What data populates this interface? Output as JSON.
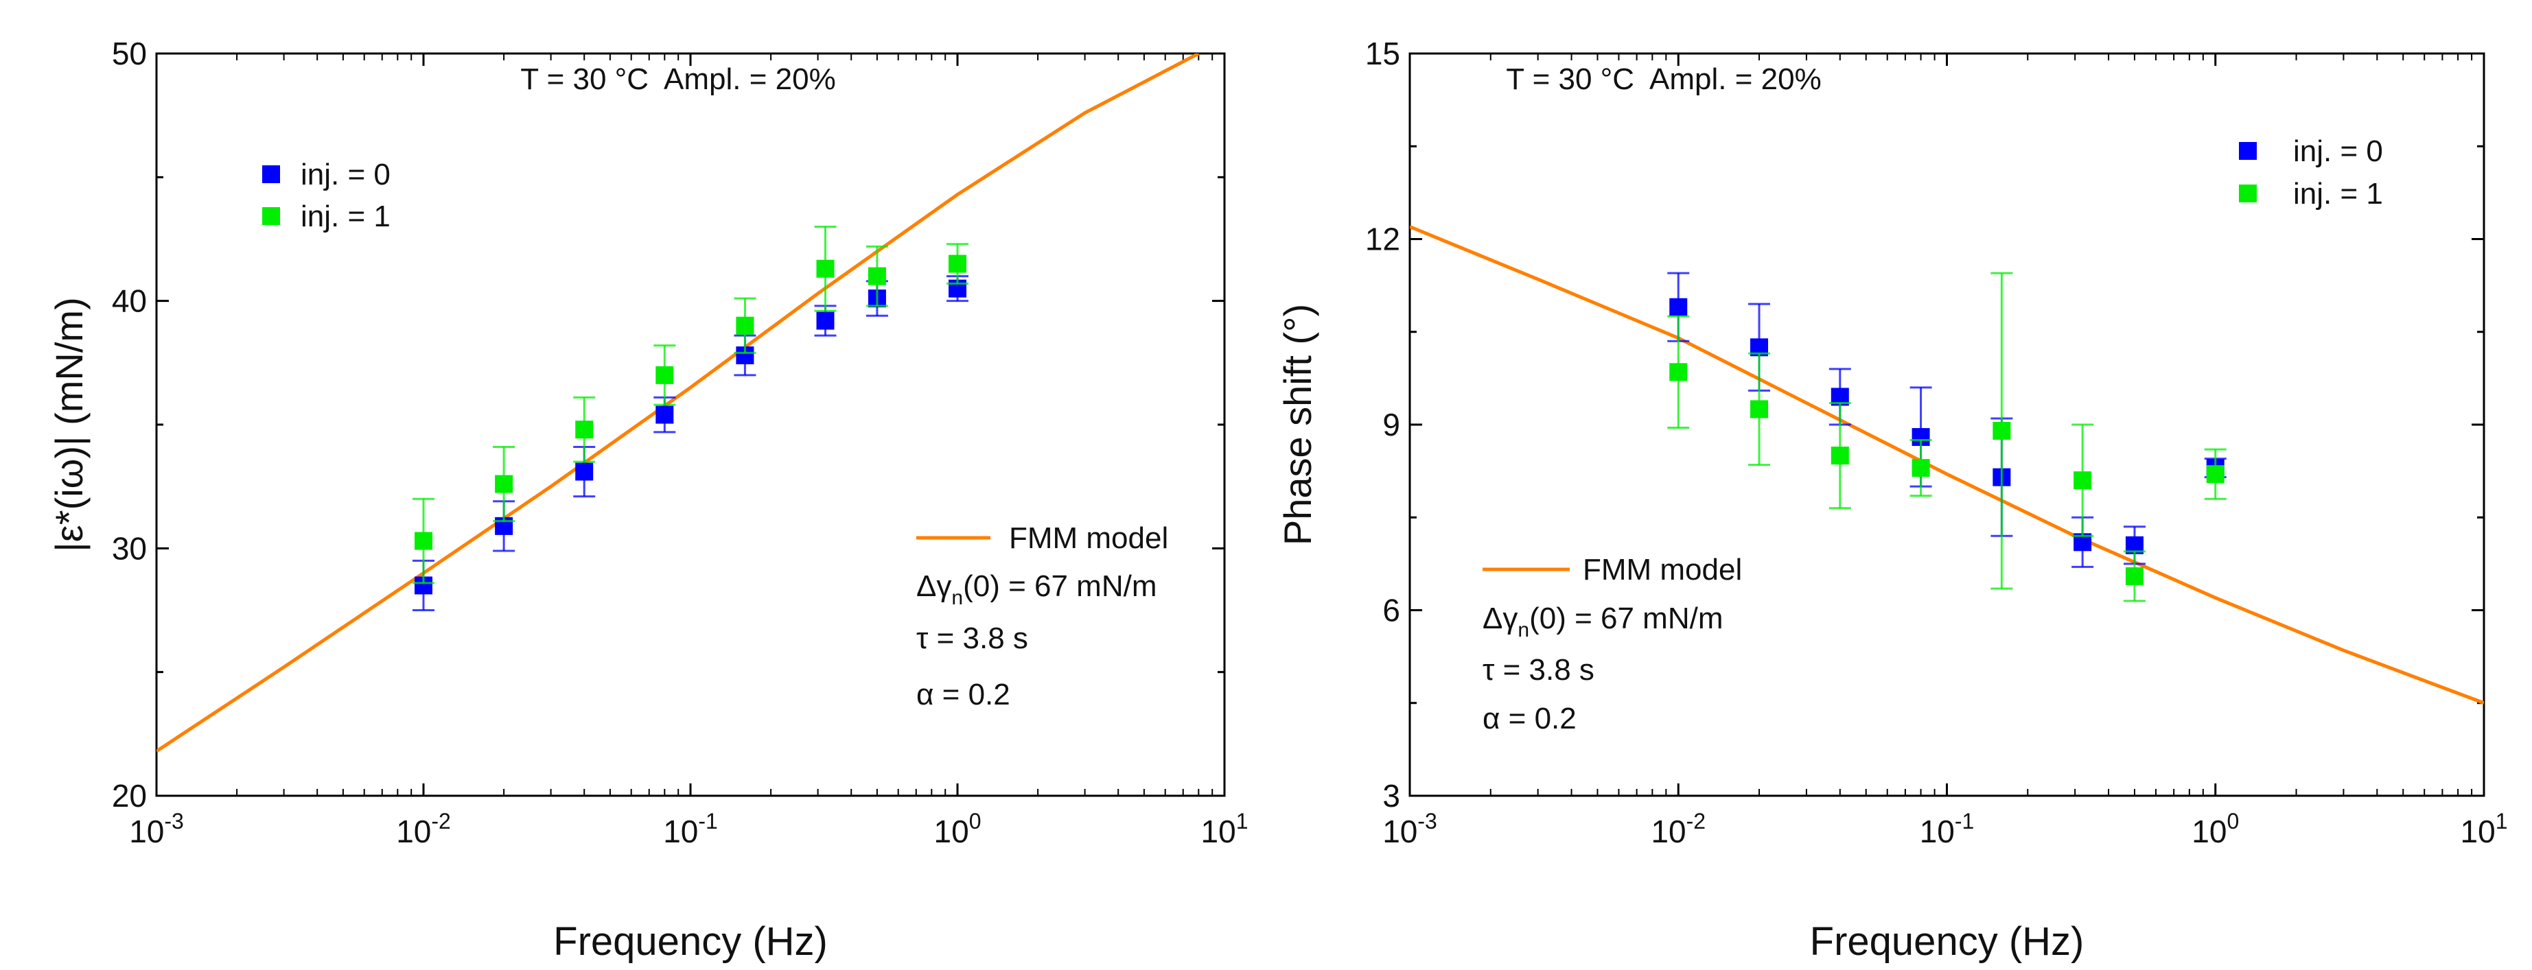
{
  "chart_data": [
    {
      "type": "scatter",
      "title": "T = 30 °C  Ampl. = 20%",
      "title_parts": {
        "prefix": "T = 30 ",
        "degree": "o",
        "suffix": "C  Ampl. = 20%"
      },
      "xlabel": "Frequency (Hz)",
      "ylabel": "|ε*(iω)| (mN/m)",
      "xscale": "log",
      "xlim": [
        0.001,
        10
      ],
      "ylim": [
        20,
        50
      ],
      "yticks": [
        20,
        30,
        40,
        50
      ],
      "xticks": [
        {
          "base": "10",
          "exp": "-3"
        },
        {
          "base": "10",
          "exp": "-2"
        },
        {
          "base": "10",
          "exp": "-1"
        },
        {
          "base": "10",
          "exp": "0"
        },
        {
          "base": "10",
          "exp": "1"
        }
      ],
      "legend_placement": "top-left",
      "series": [
        {
          "name": "inj. = 0",
          "color": "#0000ff",
          "x": [
            0.01,
            0.02,
            0.04,
            0.08,
            0.16,
            0.32,
            0.5,
            1
          ],
          "y": [
            28.5,
            30.9,
            33.1,
            35.4,
            37.8,
            39.2,
            40.1,
            40.5
          ],
          "err": [
            1.0,
            1.0,
            1.0,
            0.7,
            0.8,
            0.6,
            0.7,
            0.5
          ]
        },
        {
          "name": "inj. = 1",
          "color": "#00ee00",
          "x": [
            0.01,
            0.02,
            0.04,
            0.08,
            0.16,
            0.32,
            0.5,
            1
          ],
          "y": [
            30.3,
            32.6,
            34.8,
            37.0,
            39.0,
            41.3,
            41.0,
            41.5
          ],
          "err": [
            1.7,
            1.5,
            1.3,
            1.2,
            1.1,
            1.7,
            1.2,
            0.8
          ]
        }
      ],
      "model": {
        "name": "FMM model",
        "color": "#ff8000",
        "x": [
          0.001,
          0.003,
          0.01,
          0.03,
          0.1,
          0.3,
          1,
          3,
          8
        ],
        "y": [
          21.8,
          25.2,
          29.0,
          32.5,
          36.5,
          40.3,
          44.3,
          47.6,
          50.0
        ]
      },
      "params": {
        "dgamma": {
          "pre": "Δγ",
          "sub": "n",
          "post": "(0) = 67 mN/m"
        },
        "tau": "τ = 3.8 s",
        "alpha": "α = 0.2"
      }
    },
    {
      "type": "scatter",
      "title": "T = 30 °C  Ampl. = 20%",
      "title_parts": {
        "prefix": "T = 30 ",
        "degree": "o",
        "suffix": "C  Ampl. = 20%"
      },
      "xlabel": "Frequency (Hz)",
      "ylabel": "Phase shift (°)",
      "xscale": "log",
      "xlim": [
        0.001,
        10
      ],
      "ylim": [
        3,
        15
      ],
      "yticks": [
        3,
        6,
        9,
        12,
        15
      ],
      "xticks": [
        {
          "base": "10",
          "exp": "-3"
        },
        {
          "base": "10",
          "exp": "-2"
        },
        {
          "base": "10",
          "exp": "-1"
        },
        {
          "base": "10",
          "exp": "0"
        },
        {
          "base": "10",
          "exp": "1"
        }
      ],
      "legend_placement": "top-right",
      "series": [
        {
          "name": "inj. = 0",
          "color": "#0000ff",
          "x": [
            0.01,
            0.02,
            0.04,
            0.08,
            0.16,
            0.32,
            0.5,
            1
          ],
          "y": [
            10.9,
            10.25,
            9.45,
            8.8,
            8.15,
            7.1,
            7.05,
            8.3
          ],
          "err": [
            0.55,
            0.7,
            0.45,
            0.8,
            0.95,
            0.4,
            0.3,
            0.15
          ]
        },
        {
          "name": "inj. = 1",
          "color": "#00ee00",
          "x": [
            0.01,
            0.02,
            0.04,
            0.08,
            0.16,
            0.32,
            0.5,
            1
          ],
          "y": [
            9.85,
            9.25,
            8.5,
            8.3,
            8.9,
            8.1,
            6.55,
            8.2
          ],
          "err": [
            0.9,
            0.9,
            0.85,
            0.45,
            2.55,
            0.9,
            0.4,
            0.4
          ]
        }
      ],
      "model": {
        "name": "FMM model",
        "color": "#ff8000",
        "x": [
          0.001,
          0.003,
          0.01,
          0.03,
          0.1,
          0.3,
          1,
          3,
          10
        ],
        "y": [
          12.2,
          11.35,
          10.4,
          9.35,
          8.2,
          7.2,
          6.2,
          5.35,
          4.5
        ]
      },
      "params": {
        "dgamma": {
          "pre": "Δγ",
          "sub": "n",
          "post": "(0) = 67 mN/m"
        },
        "tau": "τ = 3.8 s",
        "alpha": "α = 0.2"
      }
    }
  ]
}
